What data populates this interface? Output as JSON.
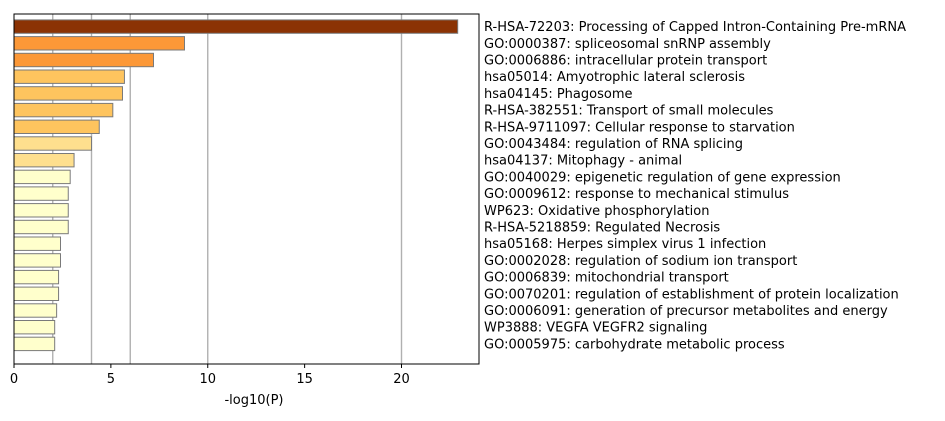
{
  "chart_data": {
    "type": "bar",
    "orientation": "horizontal",
    "xlabel": "-log10(P)",
    "ylabel": "",
    "title": "",
    "xlim": [
      0,
      24
    ],
    "xticks": [
      0,
      5,
      10,
      15,
      20
    ],
    "xtick_labels": [
      "0",
      "5",
      "10",
      "15",
      "20"
    ],
    "grid_lines_at": [
      2,
      4,
      6,
      10,
      20
    ],
    "legend": "none",
    "label_position": "right",
    "categories": [
      "R-HSA-72203: Processing of Capped Intron-Containing Pre-mRNA",
      "GO:0000387: spliceosomal snRNP assembly",
      "GO:0006886: intracellular protein transport",
      "hsa05014: Amyotrophic lateral sclerosis",
      "hsa04145: Phagosome",
      "R-HSA-382551: Transport of small molecules",
      "R-HSA-9711097: Cellular response to starvation",
      "GO:0043484: regulation of RNA splicing",
      "hsa04137: Mitophagy - animal",
      "GO:0040029: epigenetic regulation of gene expression",
      "GO:0009612: response to mechanical stimulus",
      "WP623: Oxidative phosphorylation",
      "R-HSA-5218859: Regulated Necrosis",
      "hsa05168: Herpes simplex virus 1 infection",
      "GO:0002028: regulation of sodium ion transport",
      "GO:0006839: mitochondrial transport",
      "GO:0070201: regulation of establishment of protein localization",
      "GO:0006091: generation of precursor metabolites and energy",
      "WP3888: VEGFA VEGFR2 signaling",
      "GO:0005975: carbohydrate metabolic process"
    ],
    "values": [
      22.9,
      8.8,
      7.2,
      5.7,
      5.6,
      5.1,
      4.4,
      4.0,
      3.1,
      2.9,
      2.8,
      2.8,
      2.8,
      2.4,
      2.4,
      2.3,
      2.3,
      2.2,
      2.1,
      2.1
    ],
    "bar_colors": [
      "#8b3304",
      "#fc9837",
      "#fc9837",
      "#fec45e",
      "#fec45e",
      "#fec45e",
      "#fec45e",
      "#fedf8e",
      "#fedf8e",
      "#ffffcc",
      "#ffffcc",
      "#ffffcc",
      "#ffffcc",
      "#ffffcc",
      "#ffffcc",
      "#ffffcc",
      "#ffffcc",
      "#ffffcc",
      "#ffffcc",
      "#ffffcc"
    ],
    "bar_edge_color": "#7a7a7a",
    "grid_color": "#b0b0b0"
  }
}
